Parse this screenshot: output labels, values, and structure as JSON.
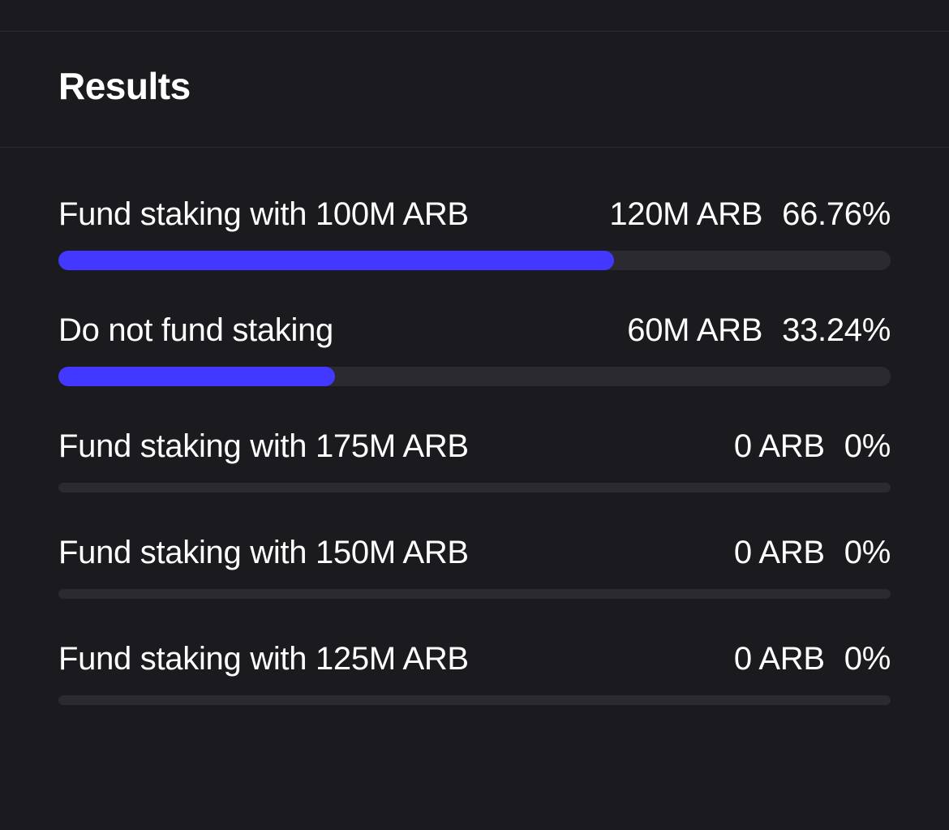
{
  "header": {
    "title": "Results"
  },
  "results": {
    "chart_type": "horizontal-bar-poll",
    "background_color": "#1a1a1f",
    "border_color": "#2a2a30",
    "text_color": "#ffffff",
    "progress_fill_color": "#4338ff",
    "progress_track_color": "#2a2a30",
    "label_fontsize": 40,
    "title_fontsize": 46,
    "bar_height_active": 24,
    "bar_height_zero": 12,
    "bar_radius": 12,
    "options": [
      {
        "label": "Fund staking with 100M ARB",
        "amount": "120M ARB",
        "percent": "66.76%",
        "fill_percent": 66.76,
        "bar_size": "large"
      },
      {
        "label": "Do not fund staking",
        "amount": "60M ARB",
        "percent": "33.24%",
        "fill_percent": 33.24,
        "bar_size": "large"
      },
      {
        "label": "Fund staking with 175M ARB",
        "amount": "0 ARB",
        "percent": "0%",
        "fill_percent": 0,
        "bar_size": "small"
      },
      {
        "label": "Fund staking with 150M ARB",
        "amount": "0 ARB",
        "percent": "0%",
        "fill_percent": 0,
        "bar_size": "small"
      },
      {
        "label": "Fund staking with 125M ARB",
        "amount": "0 ARB",
        "percent": "0%",
        "fill_percent": 0,
        "bar_size": "small"
      }
    ]
  }
}
